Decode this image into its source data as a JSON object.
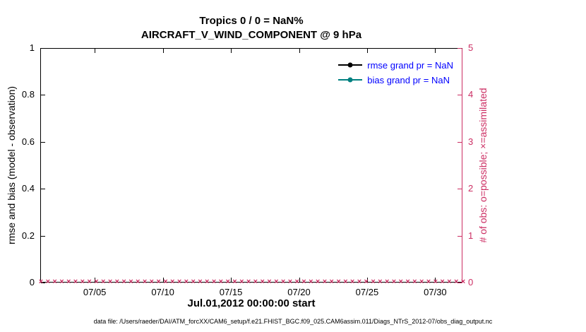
{
  "title": {
    "line1": "Tropics 0 / 0 = NaN%",
    "line2": "AIRCRAFT_V_WIND_COMPONENT @ 9 hPa"
  },
  "left_axis": {
    "label": "rmse and bias (model - observation)",
    "ticks": [
      "0",
      "0.2",
      "0.4",
      "0.6",
      "0.8",
      "1"
    ],
    "color": "#000000"
  },
  "right_axis": {
    "label": "# of obs: o=possible; ×=assimilated",
    "ticks": [
      "0",
      "1",
      "2",
      "3",
      "4",
      "5"
    ],
    "color": "#CC2E63"
  },
  "x_axis": {
    "label": "Jul.01,2012 00:00:00 start",
    "range_days": [
      1,
      32
    ],
    "ticks": [
      {
        "label": "07/05",
        "day": 5
      },
      {
        "label": "07/10",
        "day": 10
      },
      {
        "label": "07/15",
        "day": 15
      },
      {
        "label": "07/20",
        "day": 20
      },
      {
        "label": "07/25",
        "day": 25
      },
      {
        "label": "07/30",
        "day": 30
      }
    ]
  },
  "legend": {
    "text_color": "#0000FF",
    "items": [
      {
        "label": "rmse grand pr = NaN",
        "line_color": "#000000"
      },
      {
        "label": "bias grand pr = NaN",
        "line_color": "#008080"
      }
    ]
  },
  "obs_markers": {
    "glyph": "×",
    "count": 62,
    "constant_value": 0,
    "color": "#CC2E63"
  },
  "footer": "data file: /Users/raeder/DAI/ATM_forcXX/CAM6_setup/f.e21.FHIST_BGC.f09_025.CAM6assim.011/Diags_NTrS_2012-07/obs_diag_output.nc",
  "chart_data": {
    "type": "line",
    "title": "Tropics 0 / 0 = NaN% — AIRCRAFT_V_WIND_COMPONENT @ 9 hPa",
    "xlabel": "Jul.01,2012 00:00:00 start",
    "ylabel": "rmse and bias (model - observation)",
    "ylabel_right": "# of obs: o=possible; ×=assimilated",
    "ylim_left": [
      0,
      1
    ],
    "ylim_right": [
      0,
      5
    ],
    "x_range": [
      "2012-07-01",
      "2012-08-01"
    ],
    "x_ticks": [
      "07/05",
      "07/10",
      "07/15",
      "07/20",
      "07/25",
      "07/30"
    ],
    "grid": false,
    "legend_position": "upper right, inside",
    "series": [
      {
        "name": "rmse grand pr = NaN",
        "axis": "left",
        "color": "#000000",
        "marker": "filled circle",
        "values": "NaN (nothing plotted)"
      },
      {
        "name": "bias grand pr = NaN",
        "axis": "left",
        "color": "#008080",
        "marker": "filled circle",
        "values": "NaN (nothing plotted)"
      },
      {
        "name": "possible obs (o)",
        "axis": "right",
        "color": "#CC2E63",
        "marker": "o",
        "constant_value": 0
      },
      {
        "name": "assimilated obs (×)",
        "axis": "right",
        "color": "#CC2E63",
        "marker": "x",
        "constant_value": 0
      }
    ],
    "notes": "No rmse/bias data (NaN); possible and assimilated observation counts are 0 at every time step, drawn as a dense row of crimson × markers along y=0."
  }
}
